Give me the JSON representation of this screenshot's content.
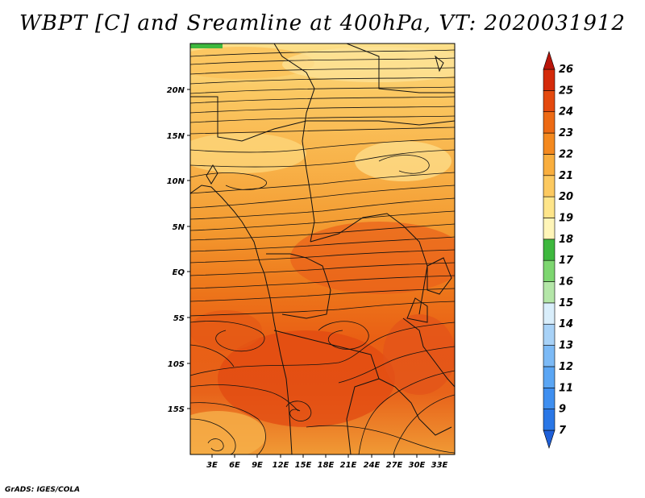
{
  "title": "WBPT [C] and Sreamline at 400hPa, VT: 2020031912",
  "footer": "GrADS: IGES/COLA",
  "map": {
    "lat_labels": [
      "20N",
      "15N",
      "10N",
      "5N",
      "EQ",
      "5S",
      "10S",
      "15S"
    ],
    "lon_labels": [
      "3E",
      "6E",
      "9E",
      "12E",
      "15E",
      "18E",
      "21E",
      "24E",
      "27E",
      "30E",
      "33E"
    ]
  },
  "colorbar": {
    "levels": [
      "7",
      "9",
      "11",
      "12",
      "13",
      "14",
      "15",
      "16",
      "17",
      "18",
      "19",
      "20",
      "21",
      "22",
      "23",
      "24",
      "25",
      "26"
    ],
    "colors": [
      "#1e5fd8",
      "#2a77e6",
      "#3f8ff0",
      "#5ba6f4",
      "#7cbaf6",
      "#a8d2f7",
      "#d9eefb",
      "#b4e6a8",
      "#7dd670",
      "#3eb83e",
      "#fff5b8",
      "#fee58a",
      "#fcc960",
      "#f9ae3e",
      "#f4891f",
      "#ed6a14",
      "#e4490e",
      "#d42a0a",
      "#b9150a"
    ]
  }
}
